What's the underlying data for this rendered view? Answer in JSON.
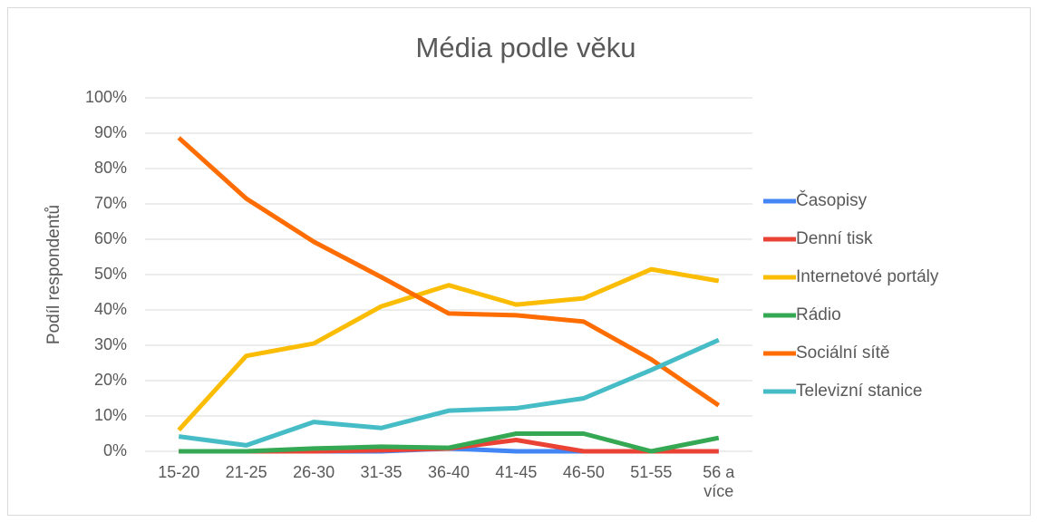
{
  "chart_data": {
    "type": "line",
    "title": "Média podle věku",
    "ylabel": "Podíl respondentů",
    "categories": [
      "15-20",
      "21-25",
      "26-30",
      "31-35",
      "36-40",
      "41-45",
      "46-50",
      "51-55",
      "56 a více"
    ],
    "series": [
      {
        "name": "Časopisy",
        "color": "#4285f4",
        "values": [
          0,
          0,
          0,
          0,
          0.8,
          0,
          0,
          0,
          0
        ]
      },
      {
        "name": "Denní tisk",
        "color": "#ea4335",
        "values": [
          0,
          0,
          0,
          0.3,
          0.8,
          3.2,
          0,
          0,
          0
        ]
      },
      {
        "name": "Internetové portály",
        "color": "#fbbc04",
        "values": [
          6,
          27,
          30.5,
          41,
          47,
          41.5,
          43.3,
          51.5,
          48.2
        ]
      },
      {
        "name": "Rádio",
        "color": "#34a853",
        "values": [
          0,
          0,
          0.8,
          1.3,
          1,
          5,
          5,
          0,
          3.8
        ]
      },
      {
        "name": "Sociální sítě",
        "color": "#ff6d01",
        "values": [
          88.7,
          71.5,
          59.3,
          49.3,
          39,
          38.5,
          36.7,
          26,
          13
        ]
      },
      {
        "name": "Televizní stanice",
        "color": "#46bdc6",
        "values": [
          4.2,
          1.7,
          8.3,
          6.6,
          11.5,
          12.2,
          15,
          23,
          31.5
        ]
      }
    ],
    "ylim": [
      0,
      100
    ],
    "yticks": [
      {
        "value": 0,
        "label": "0%"
      },
      {
        "value": 10,
        "label": "10%"
      },
      {
        "value": 20,
        "label": "20%"
      },
      {
        "value": 30,
        "label": "30%"
      },
      {
        "value": 40,
        "label": "40%"
      },
      {
        "value": 50,
        "label": "50%"
      },
      {
        "value": 60,
        "label": "60%"
      },
      {
        "value": 70,
        "label": "70%"
      },
      {
        "value": 80,
        "label": "80%"
      },
      {
        "value": 90,
        "label": "90%"
      },
      {
        "value": 100,
        "label": "100%"
      }
    ],
    "grid": true,
    "legend": "right"
  }
}
